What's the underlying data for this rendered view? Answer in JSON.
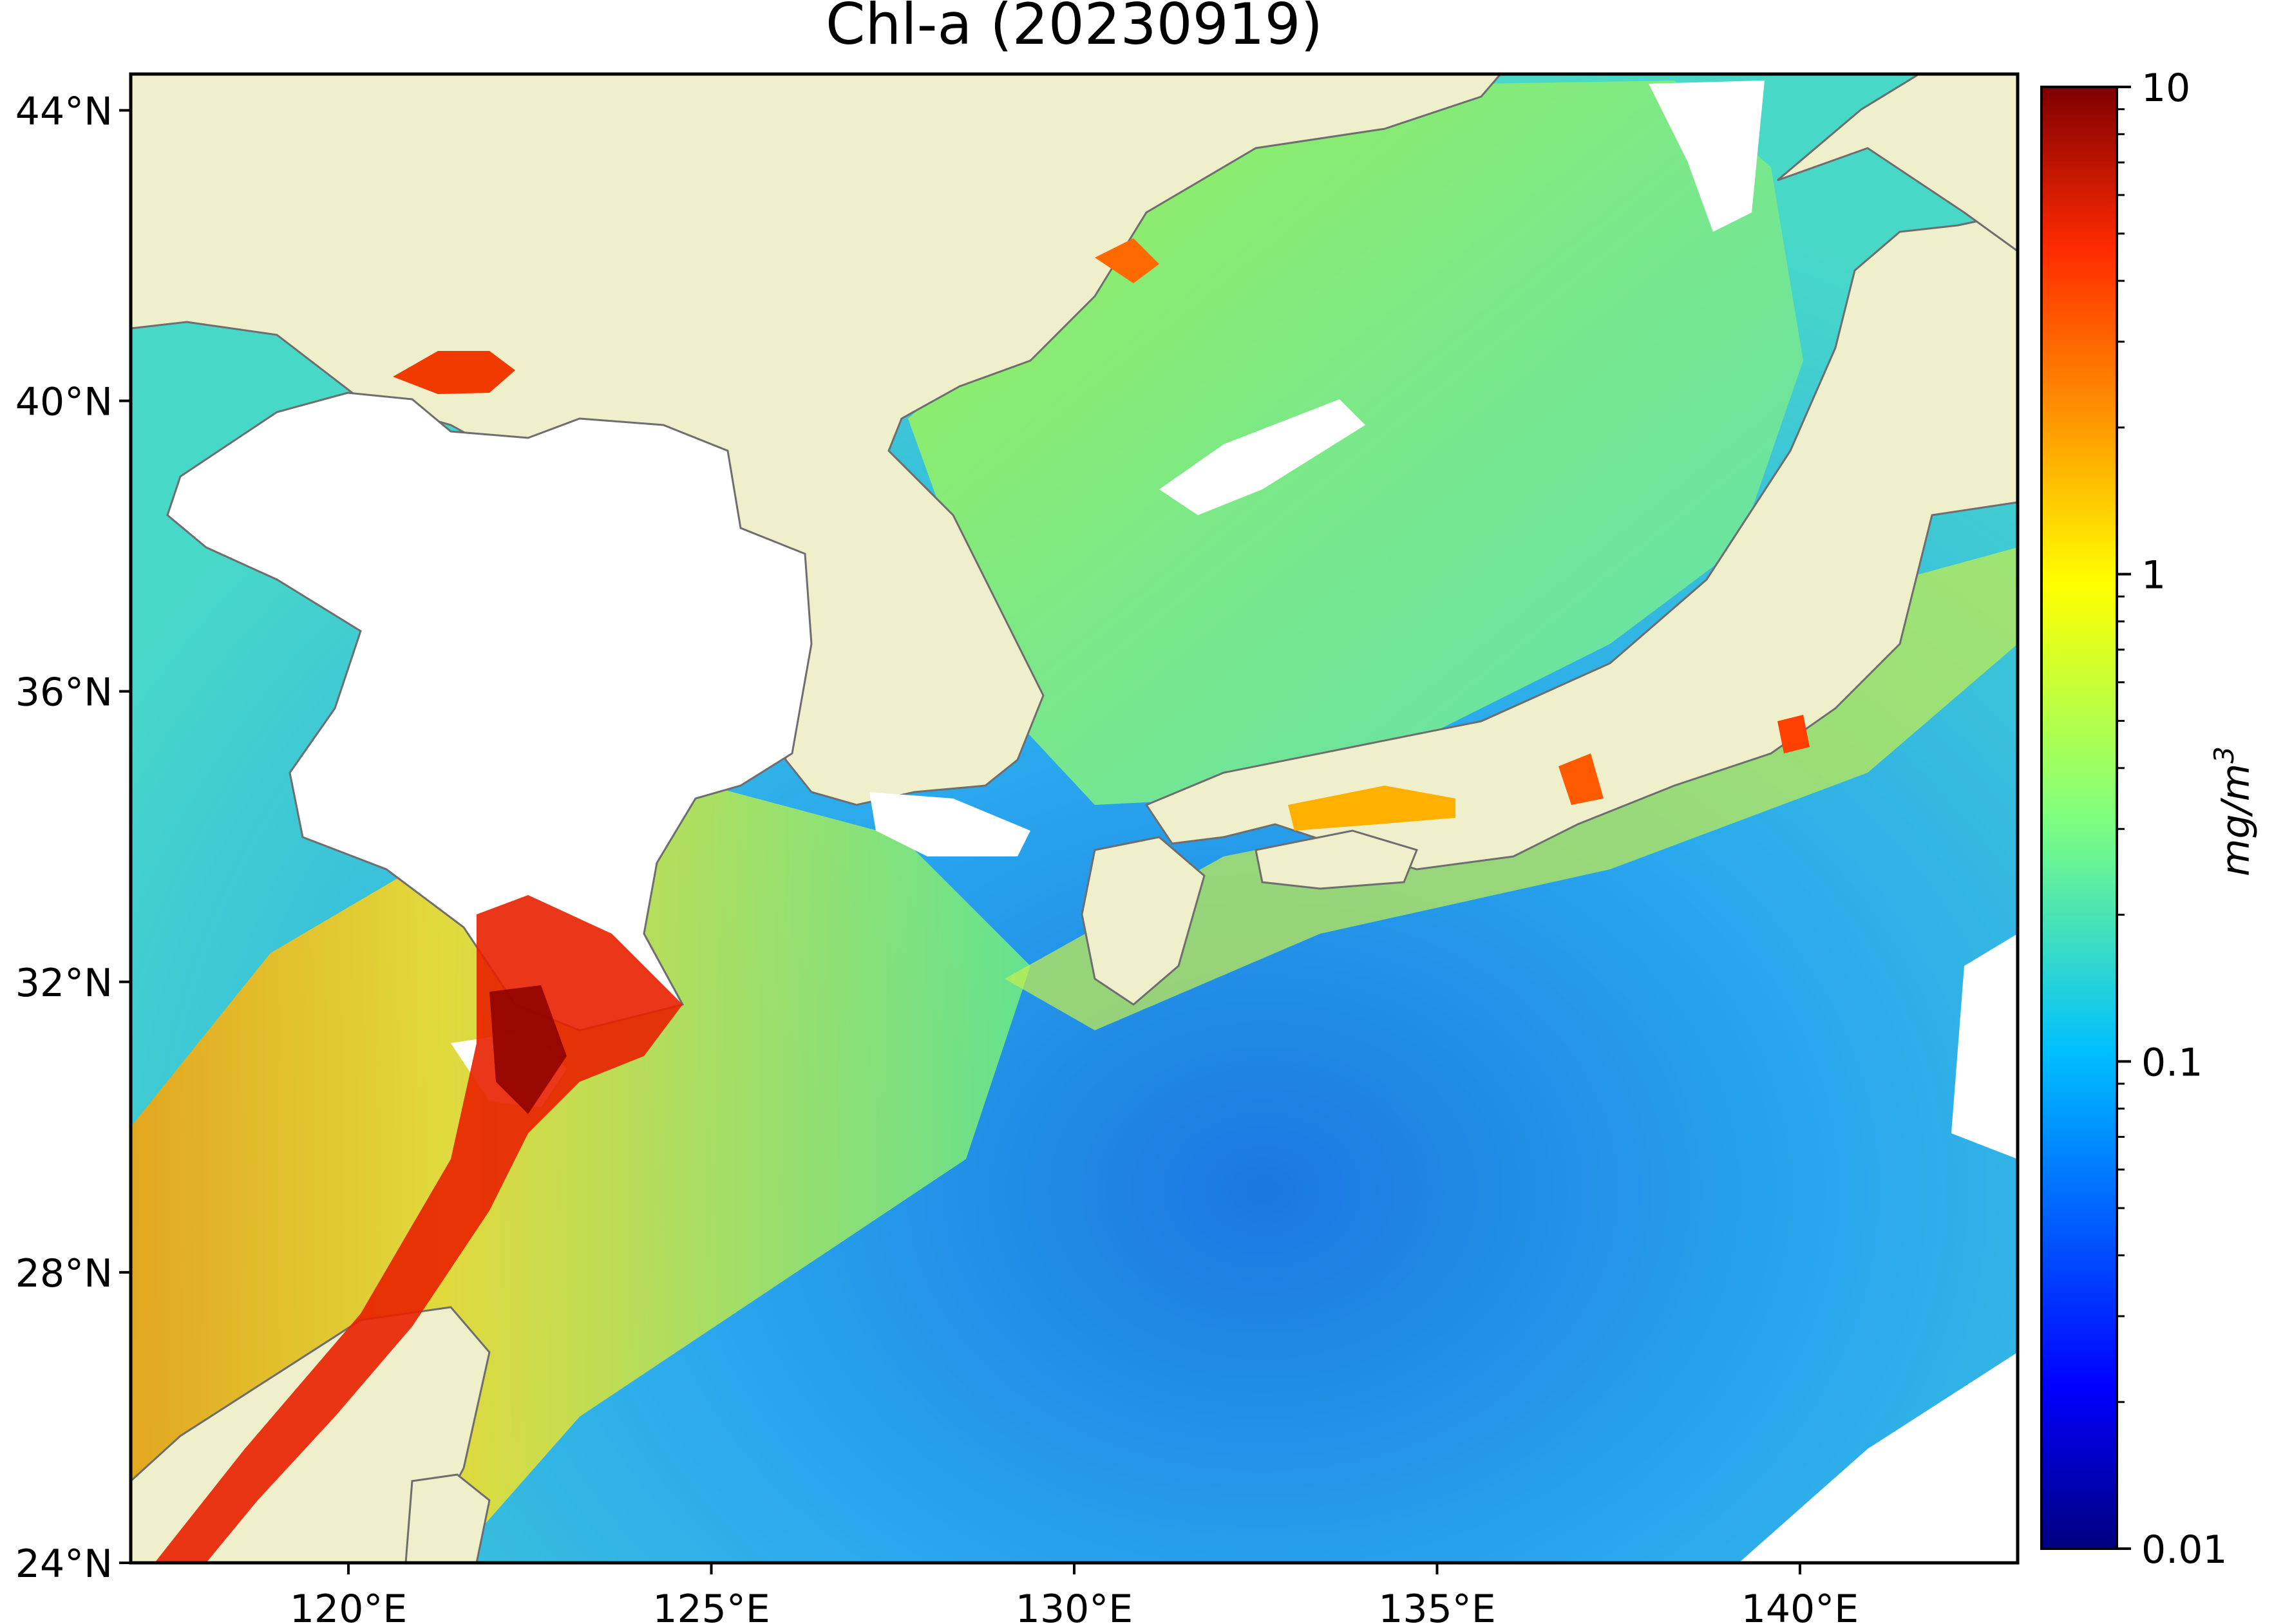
{
  "title": "Chl-a (20230919)",
  "map": {
    "lon_range": [
      117,
      143
    ],
    "lat_range": [
      24,
      44.5
    ],
    "x_ticks": [
      {
        "lon": 120,
        "label": "120°E"
      },
      {
        "lon": 125,
        "label": "125°E"
      },
      {
        "lon": 130,
        "label": "130°E"
      },
      {
        "lon": 135,
        "label": "135°E"
      },
      {
        "lon": 140,
        "label": "140°E"
      }
    ],
    "y_ticks": [
      {
        "lat": 24,
        "label": "24°N"
      },
      {
        "lat": 28,
        "label": "28°N"
      },
      {
        "lat": 32,
        "label": "32°N"
      },
      {
        "lat": 36,
        "label": "36°N"
      },
      {
        "lat": 40,
        "label": "40°N"
      },
      {
        "lat": 44,
        "label": "44°N"
      }
    ],
    "colors": {
      "land": "#efefcc",
      "coastline": "#6e6e6e",
      "no_data": "#ffffff",
      "frame": "#000000"
    },
    "scale": "log"
  },
  "colorbar": {
    "label": "mg/m",
    "label_superscript": "3",
    "colormap": "jet",
    "range": [
      0.01,
      10
    ],
    "scale": "log",
    "ticks": [
      {
        "value": 10,
        "label": "10"
      },
      {
        "value": 1,
        "label": "1"
      },
      {
        "value": 0.1,
        "label": "0.1"
      },
      {
        "value": 0.01,
        "label": "0.01"
      }
    ]
  }
}
